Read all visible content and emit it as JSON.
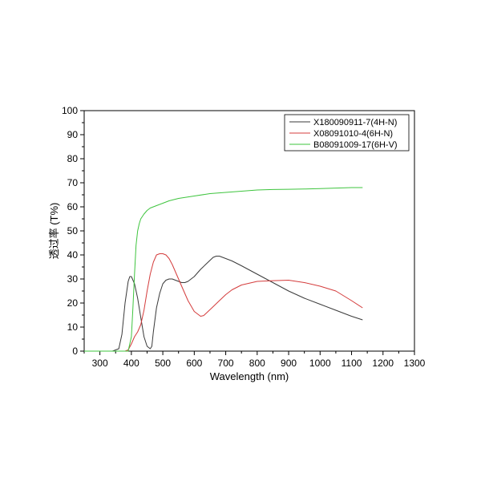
{
  "chart_data": {
    "type": "line",
    "xlabel": "Wavelength (nm)",
    "ylabel": "透过率  (T%)",
    "xlim": [
      250,
      1300
    ],
    "ylim": [
      0,
      100
    ],
    "xticks": [
      300,
      400,
      500,
      600,
      700,
      800,
      900,
      1000,
      1100,
      1200,
      1300
    ],
    "yticks": [
      0,
      10,
      20,
      30,
      40,
      50,
      60,
      70,
      80,
      90,
      100
    ],
    "grid": false,
    "legend_position": "top-right",
    "series": [
      {
        "name": "X180090911-7(4H-N)",
        "color": "#3a3a3a",
        "x": [
          250,
          340,
          360,
          370,
          380,
          390,
          395,
          400,
          410,
          420,
          430,
          440,
          450,
          460,
          465,
          470,
          480,
          490,
          500,
          510,
          520,
          530,
          540,
          550,
          560,
          570,
          580,
          600,
          620,
          640,
          660,
          670,
          680,
          700,
          720,
          750,
          800,
          850,
          900,
          950,
          1000,
          1050,
          1100,
          1135
        ],
        "y": [
          0,
          0,
          1,
          7,
          20,
          29,
          31,
          31,
          28,
          22,
          14,
          6,
          2,
          1,
          2,
          8,
          18,
          24,
          28,
          29.5,
          30,
          30,
          29.5,
          29,
          28.5,
          28.5,
          29,
          31,
          34,
          36.5,
          39,
          39.5,
          39.5,
          38.5,
          37.5,
          35.5,
          32,
          28.5,
          25,
          22,
          19.5,
          17,
          14.5,
          13
        ]
      },
      {
        "name": "X08091010-4(6H-N)",
        "color": "#d43c3c",
        "x": [
          250,
          360,
          380,
          390,
          400,
          410,
          420,
          430,
          440,
          450,
          460,
          470,
          480,
          490,
          500,
          510,
          520,
          530,
          540,
          560,
          580,
          600,
          620,
          630,
          640,
          660,
          680,
          700,
          720,
          750,
          800,
          850,
          900,
          950,
          1000,
          1050,
          1100,
          1135
        ],
        "y": [
          0,
          0,
          0,
          0.5,
          3,
          6,
          8,
          11,
          17,
          25,
          32,
          37,
          40,
          40.5,
          40.5,
          40,
          38.5,
          36,
          33,
          27,
          21,
          16.5,
          14.5,
          14.8,
          16,
          18.5,
          21,
          23.5,
          25.5,
          27.5,
          29,
          29.3,
          29.5,
          28.5,
          27,
          25,
          21,
          18
        ]
      },
      {
        "name": "B08091009-17(6H-V)",
        "color": "#3ec43e",
        "x": [
          250,
          390,
          400,
          405,
          410,
          415,
          420,
          425,
          430,
          440,
          450,
          460,
          480,
          500,
          520,
          550,
          600,
          650,
          700,
          750,
          800,
          850,
          900,
          950,
          1000,
          1050,
          1100,
          1135
        ],
        "y": [
          0,
          0,
          6,
          18,
          32,
          44,
          50,
          53,
          55,
          57,
          58.5,
          59.5,
          60.5,
          61.5,
          62.5,
          63.5,
          64.5,
          65.5,
          66,
          66.5,
          67,
          67.2,
          67.3,
          67.4,
          67.6,
          67.8,
          68,
          68
        ]
      }
    ]
  }
}
